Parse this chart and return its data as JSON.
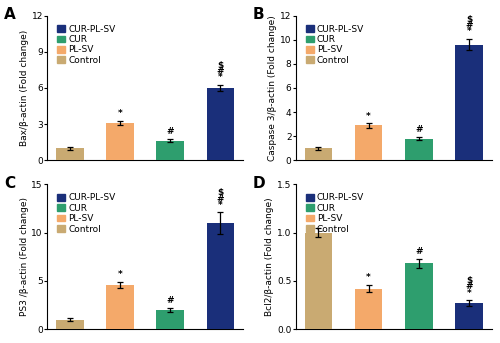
{
  "panels": [
    {
      "label": "A",
      "ylabel": "Bax/β-actin (Fold change)",
      "ylim": [
        0,
        12
      ],
      "yticks": [
        0,
        3,
        6,
        9,
        12
      ],
      "bars": [
        {
          "group": "Control",
          "value": 1.0,
          "error": 0.15,
          "color": "#c9aa72"
        },
        {
          "group": "PL-SV",
          "value": 3.1,
          "error": 0.2,
          "color": "#f4a96a"
        },
        {
          "group": "CUR",
          "value": 1.65,
          "error": 0.15,
          "color": "#2e9e6e"
        },
        {
          "group": "CUR-PL-SV",
          "value": 6.0,
          "error": 0.28,
          "color": "#1a2f7a"
        }
      ],
      "annots": [
        null,
        "*",
        "#",
        [
          "$",
          "#",
          "*"
        ]
      ]
    },
    {
      "label": "B",
      "ylabel": "Caspase 3/β-actin (Fold change)",
      "ylim": [
        0,
        12
      ],
      "yticks": [
        0,
        2,
        4,
        6,
        8,
        10,
        12
      ],
      "bars": [
        {
          "group": "Control",
          "value": 1.0,
          "error": 0.1,
          "color": "#c9aa72"
        },
        {
          "group": "PL-SV",
          "value": 2.9,
          "error": 0.18,
          "color": "#f4a96a"
        },
        {
          "group": "CUR",
          "value": 1.8,
          "error": 0.14,
          "color": "#2e9e6e"
        },
        {
          "group": "CUR-PL-SV",
          "value": 9.6,
          "error": 0.45,
          "color": "#1a2f7a"
        }
      ],
      "annots": [
        null,
        "*",
        "#",
        [
          "$",
          "#",
          "*"
        ]
      ]
    },
    {
      "label": "C",
      "ylabel": "PS3 /β-actin (Fold change)",
      "ylim": [
        0,
        15
      ],
      "yticks": [
        0,
        5,
        10,
        15
      ],
      "bars": [
        {
          "group": "Control",
          "value": 1.0,
          "error": 0.12,
          "color": "#c9aa72"
        },
        {
          "group": "PL-SV",
          "value": 4.6,
          "error": 0.3,
          "color": "#f4a96a"
        },
        {
          "group": "CUR",
          "value": 2.0,
          "error": 0.2,
          "color": "#2e9e6e"
        },
        {
          "group": "CUR-PL-SV",
          "value": 11.0,
          "error": 1.1,
          "color": "#1a2f7a"
        }
      ],
      "annots": [
        null,
        "*",
        "#",
        [
          "$",
          "#",
          "*"
        ]
      ]
    },
    {
      "label": "D",
      "ylabel": "Bcl2/β-actin (Fold change)",
      "ylim": [
        0,
        1.5
      ],
      "yticks": [
        0.0,
        0.5,
        1.0,
        1.5
      ],
      "bars": [
        {
          "group": "Control",
          "value": 1.0,
          "error": 0.05,
          "color": "#c9aa72"
        },
        {
          "group": "PL-SV",
          "value": 0.42,
          "error": 0.04,
          "color": "#f4a96a"
        },
        {
          "group": "CUR",
          "value": 0.68,
          "error": 0.05,
          "color": "#2e9e6e"
        },
        {
          "group": "CUR-PL-SV",
          "value": 0.27,
          "error": 0.03,
          "color": "#1a2f7a"
        }
      ],
      "annots": [
        null,
        "*",
        "#",
        [
          "$",
          "#",
          "*"
        ]
      ]
    }
  ],
  "legend_labels": [
    "CUR-PL-SV",
    "CUR",
    "PL-SV",
    "Control"
  ],
  "legend_colors": [
    "#1a2f7a",
    "#2e9e6e",
    "#f4a96a",
    "#c9aa72"
  ],
  "bar_width": 0.55,
  "background_color": "#ffffff",
  "tick_fontsize": 6.5,
  "label_fontsize": 6.5,
  "legend_fontsize": 6.5,
  "panel_label_fontsize": 11,
  "annot_fontsize": 6.5
}
